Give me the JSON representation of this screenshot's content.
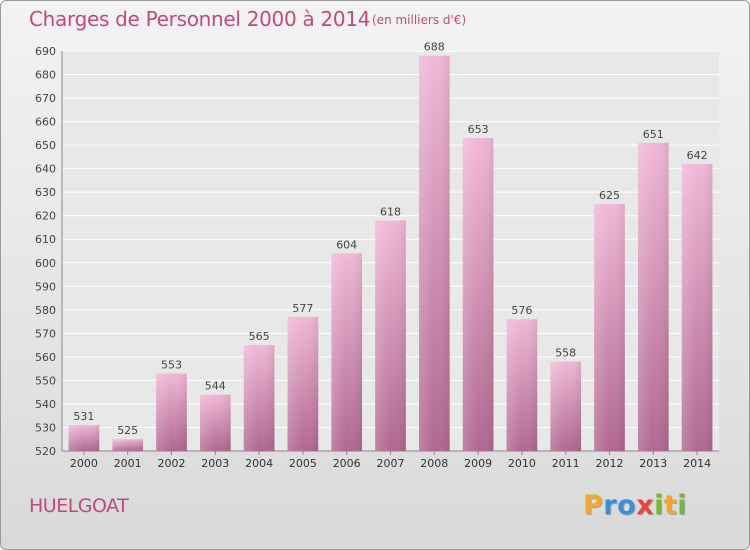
{
  "header": {
    "title": "Charges de Personnel 2000 à 2014",
    "subtitle": "(en milliers d'€)"
  },
  "footer": {
    "town": "HUELGOAT",
    "logo_letters": [
      "P",
      "r",
      "o",
      "x",
      "i",
      "t",
      "i"
    ],
    "logo_colors": [
      "#f0a830",
      "#3a8fd8",
      "#3a8fd8",
      "#e8463c",
      "#74b83a",
      "#f0a830",
      "#74b83a"
    ]
  },
  "colors": {
    "bar_light": "#f0b8d6",
    "bar_dark": "#b06890",
    "text": "#c04a7e",
    "grid": "#ffffff"
  },
  "chart_data": {
    "type": "bar",
    "title": "Charges de Personnel 2000 à 2014",
    "subtitle": "(en milliers d'€)",
    "categories": [
      "2000",
      "2001",
      "2002",
      "2003",
      "2004",
      "2005",
      "2006",
      "2007",
      "2008",
      "2009",
      "2010",
      "2011",
      "2012",
      "2013",
      "2014"
    ],
    "values": [
      531,
      525,
      553,
      544,
      565,
      577,
      604,
      618,
      688,
      653,
      576,
      558,
      625,
      651,
      642
    ],
    "ylim": [
      520,
      690
    ],
    "ytick_step": 10,
    "grid": true,
    "data_labels": true
  }
}
